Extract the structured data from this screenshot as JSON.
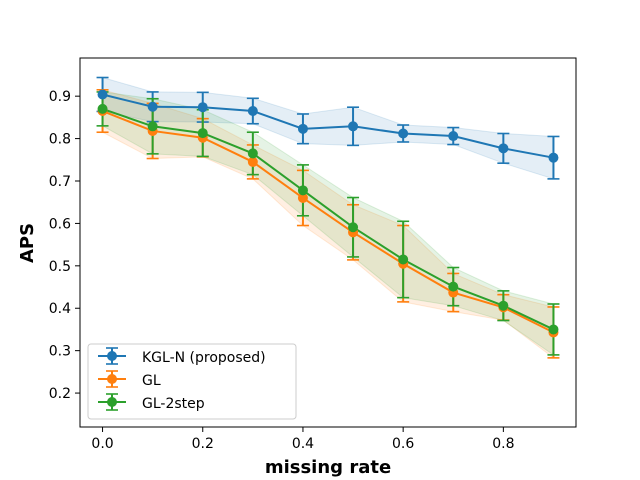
{
  "chart_data": {
    "type": "line",
    "title": "",
    "xlabel": "missing rate",
    "ylabel": "APS",
    "xlim": [
      -0.045,
      0.945
    ],
    "ylim": [
      0.12,
      0.99
    ],
    "xticks": [
      0.0,
      0.2,
      0.4,
      0.6,
      0.8
    ],
    "xtick_labels": [
      "0.0",
      "0.2",
      "0.4",
      "0.6",
      "0.8"
    ],
    "yticks": [
      0.2,
      0.3,
      0.4,
      0.5,
      0.6,
      0.7,
      0.8,
      0.9
    ],
    "ytick_labels": [
      "0.2",
      "0.3",
      "0.4",
      "0.5",
      "0.6",
      "0.7",
      "0.8",
      "0.9"
    ],
    "legend_position": "lower-left",
    "x": [
      0.0,
      0.1,
      0.2,
      0.3,
      0.4,
      0.5,
      0.6,
      0.7,
      0.8,
      0.9
    ],
    "series": [
      {
        "name": "KGL-N (proposed)",
        "color": "#1f77b4",
        "values": [
          0.904,
          0.875,
          0.874,
          0.865,
          0.823,
          0.829,
          0.812,
          0.806,
          0.777,
          0.755
        ],
        "error": [
          0.04,
          0.035,
          0.035,
          0.03,
          0.035,
          0.045,
          0.02,
          0.02,
          0.035,
          0.05
        ]
      },
      {
        "name": "GL",
        "color": "#ff7f0e",
        "values": [
          0.865,
          0.818,
          0.802,
          0.745,
          0.66,
          0.579,
          0.505,
          0.437,
          0.402,
          0.343
        ],
        "error": [
          0.05,
          0.065,
          0.045,
          0.04,
          0.065,
          0.065,
          0.09,
          0.045,
          0.03,
          0.06
        ]
      },
      {
        "name": "GL-2step",
        "color": "#2ca02c",
        "values": [
          0.87,
          0.829,
          0.813,
          0.765,
          0.678,
          0.591,
          0.515,
          0.451,
          0.406,
          0.35
        ],
        "error": [
          0.04,
          0.065,
          0.055,
          0.05,
          0.06,
          0.07,
          0.09,
          0.045,
          0.035,
          0.06
        ]
      }
    ]
  }
}
